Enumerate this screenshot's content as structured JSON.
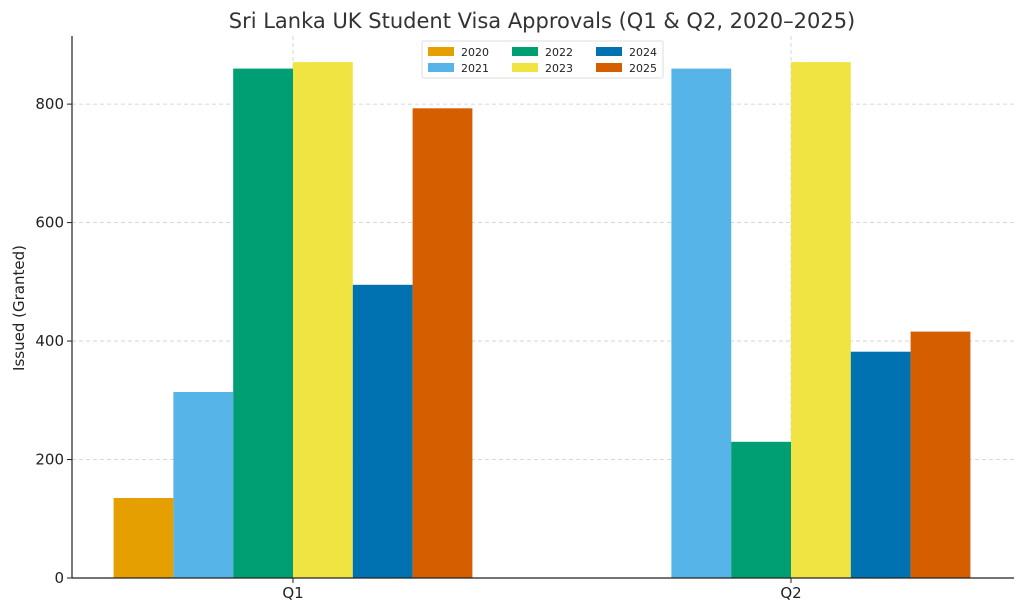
{
  "chart_data": {
    "type": "bar",
    "title": "Sri Lanka UK Student Visa Approvals (Q1 & Q2, 2020–2025)",
    "xlabel": "",
    "ylabel": "Issued (Granted)",
    "ylim": [
      0,
      915
    ],
    "yticks": [
      0,
      200,
      400,
      600,
      800
    ],
    "categories": [
      "Q1",
      "Q2"
    ],
    "grid": true,
    "legend_position": "top-center",
    "series": [
      {
        "name": "2020",
        "color": "#E69F00",
        "values": [
          135,
          0
        ]
      },
      {
        "name": "2021",
        "color": "#56B4E9",
        "values": [
          314,
          860
        ]
      },
      {
        "name": "2022",
        "color": "#009E73",
        "values": [
          860,
          230
        ]
      },
      {
        "name": "2023",
        "color": "#F0E442",
        "values": [
          871,
          871
        ]
      },
      {
        "name": "2024",
        "color": "#0072B2",
        "values": [
          495,
          382
        ]
      },
      {
        "name": "2025",
        "color": "#D55E00",
        "values": [
          793,
          416
        ]
      }
    ]
  }
}
